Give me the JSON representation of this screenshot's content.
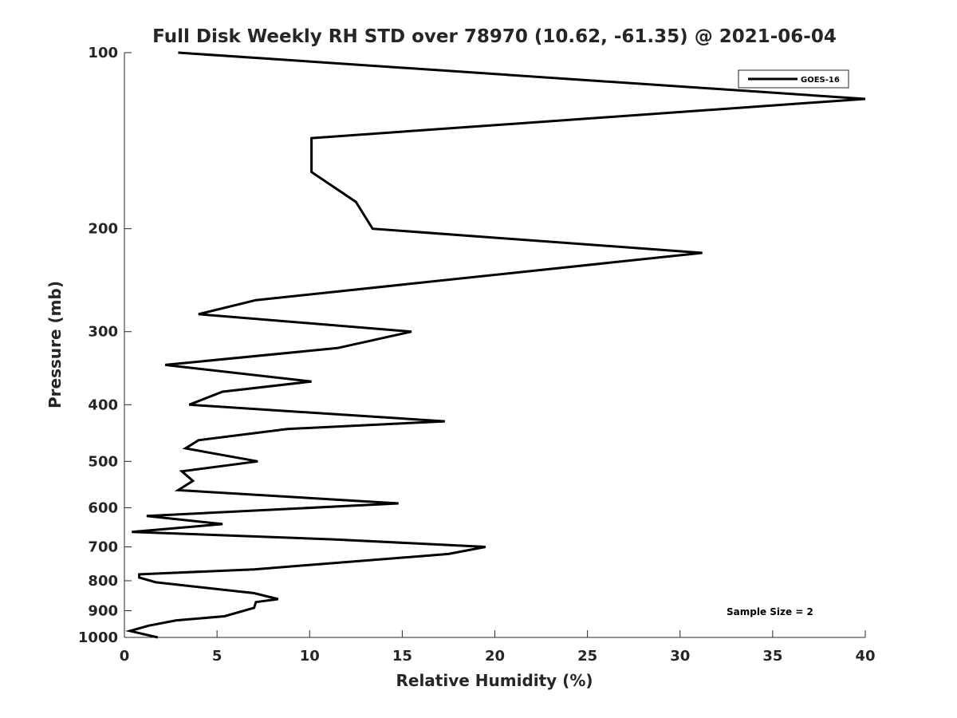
{
  "chart_data": {
    "type": "line",
    "title": "Full Disk Weekly RH STD over 78970 (10.62, -61.35) @ 2021-06-04",
    "xlabel": "Relative Humidity (%)",
    "ylabel": "Pressure (mb)",
    "xlim": [
      0,
      40
    ],
    "ylim": [
      100,
      1000
    ],
    "yscale": "log",
    "y_reversed": true,
    "xticks": [
      0,
      5,
      10,
      15,
      20,
      25,
      30,
      35,
      40
    ],
    "xtick_labels": [
      "0",
      "5",
      "10",
      "15",
      "20",
      "25",
      "30",
      "35",
      "40"
    ],
    "yticks": [
      100,
      200,
      300,
      400,
      500,
      600,
      700,
      800,
      900,
      1000
    ],
    "ytick_labels": [
      "100",
      "200",
      "300",
      "400",
      "500",
      "600",
      "700",
      "800",
      "900",
      "1000"
    ],
    "grid": false,
    "legend_position": "top-right",
    "series": [
      {
        "name": "GOES-16",
        "color": "#000000",
        "points": [
          [
            2.9,
            100
          ],
          [
            40.0,
            120
          ],
          [
            10.1,
            140
          ],
          [
            10.1,
            160
          ],
          [
            12.5,
            180
          ],
          [
            13.4,
            200
          ],
          [
            31.2,
            220
          ],
          [
            7.1,
            265
          ],
          [
            4.0,
            280
          ],
          [
            15.5,
            300
          ],
          [
            11.5,
            320
          ],
          [
            2.2,
            342
          ],
          [
            10.1,
            365
          ],
          [
            5.3,
            380
          ],
          [
            3.5,
            400
          ],
          [
            17.3,
            427
          ],
          [
            8.8,
            440
          ],
          [
            4.0,
            460
          ],
          [
            3.3,
            475
          ],
          [
            7.2,
            500
          ],
          [
            3.1,
            520
          ],
          [
            3.7,
            540
          ],
          [
            2.9,
            560
          ],
          [
            14.8,
            590
          ],
          [
            1.2,
            620
          ],
          [
            5.3,
            640
          ],
          [
            0.4,
            660
          ],
          [
            11.4,
            680
          ],
          [
            19.5,
            700
          ],
          [
            17.5,
            720
          ],
          [
            7.0,
            765
          ],
          [
            0.8,
            780
          ],
          [
            0.8,
            790
          ],
          [
            1.7,
            805
          ],
          [
            7.0,
            840
          ],
          [
            8.3,
            860
          ],
          [
            7.1,
            870
          ],
          [
            7.0,
            890
          ],
          [
            5.4,
            920
          ],
          [
            2.8,
            935
          ],
          [
            1.3,
            955
          ],
          [
            0.3,
            975
          ],
          [
            1.8,
            1000
          ]
        ]
      }
    ],
    "annotation": "Sample Size = 2"
  }
}
